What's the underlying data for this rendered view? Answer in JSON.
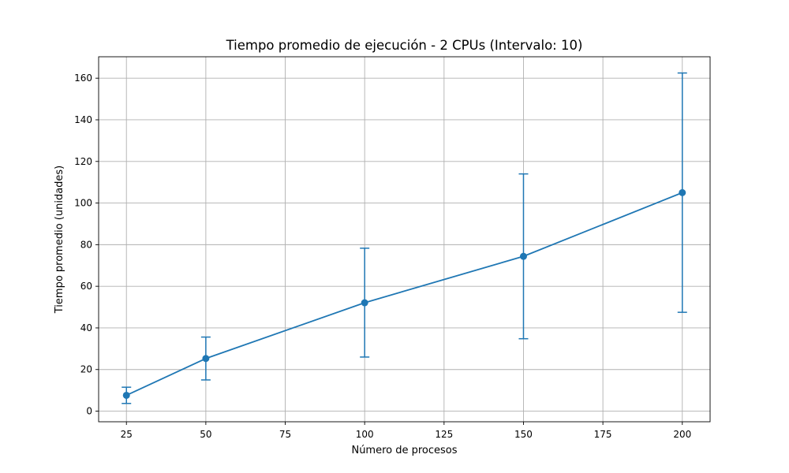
{
  "chart_data": {
    "type": "line",
    "title": "Tiempo promedio de ejecución - 2 CPUs (Intervalo: 10)",
    "xlabel": "Número de procesos",
    "ylabel": "Tiempo promedio (unidades)",
    "x_ticks": [
      25,
      50,
      75,
      100,
      125,
      150,
      175,
      200
    ],
    "y_ticks": [
      0,
      20,
      40,
      60,
      80,
      100,
      120,
      140,
      160
    ],
    "xlim": [
      16.25,
      208.75
    ],
    "ylim": [
      -5.1,
      170.3
    ],
    "grid": true,
    "series": [
      {
        "x": [
          25,
          50,
          100,
          150,
          200
        ],
        "y": [
          7.6,
          25.3,
          52.1,
          74.4,
          105.0
        ],
        "yerr_low": [
          3.7,
          15.0,
          26.0,
          34.8,
          47.5
        ],
        "yerr_high": [
          11.5,
          35.6,
          78.3,
          114.0,
          162.5
        ],
        "color": "#1f77b4",
        "marker": "circle"
      }
    ]
  }
}
